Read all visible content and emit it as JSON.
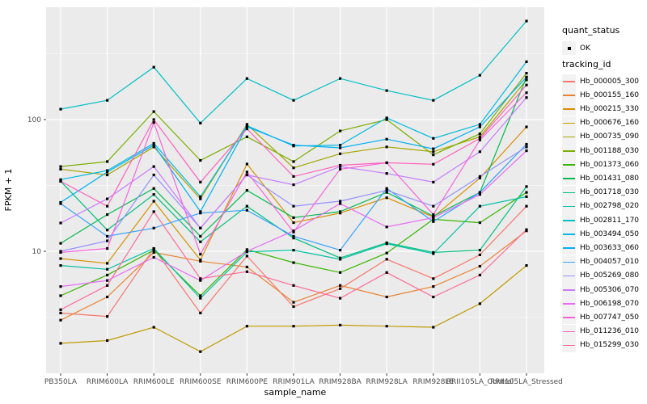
{
  "chart_data": {
    "type": "line",
    "title": "",
    "xlabel": "sample_name",
    "ylabel": "FPKM + 1",
    "y_scale": "log10",
    "y_ticks": [
      {
        "value": 100,
        "label": "100"
      },
      {
        "value": 10,
        "label": "10"
      }
    ],
    "y_minor_gridlines": [
      3.1623,
      31.623,
      316.23
    ],
    "ylim": [
      1.2,
      730
    ],
    "grid": "on",
    "legend_position": "right",
    "x_categories": [
      "PB350LA",
      "RRIM600LA",
      "RRIM600LE",
      "RRIM600SE",
      "RRIM600PE",
      "RRIM901LA",
      "RRIM928BA",
      "RRIM928LA",
      "RRIM928LE",
      "RRII105LA_Control",
      "RRII105LA_Stressed"
    ],
    "series": [
      {
        "name": "Hb_000005_300",
        "color": "#F8766D",
        "values": [
          3.4,
          3.2,
          10.5,
          3.4,
          9.2,
          3.8,
          5.2,
          8.7,
          6.2,
          9.4,
          22
        ]
      },
      {
        "name": "Hb_000155_160",
        "color": "#EA8331",
        "values": [
          3.0,
          4.5,
          9.8,
          8.4,
          7.6,
          4.1,
          5.5,
          4.5,
          5.4,
          7.7,
          14.3
        ]
      },
      {
        "name": "Hb_000215_330",
        "color": "#D89000",
        "values": [
          8.8,
          8.1,
          24,
          8.6,
          46,
          16.5,
          19.5,
          25.5,
          18.2,
          36,
          88
        ]
      },
      {
        "name": "Hb_000676_160",
        "color": "#C09B00",
        "values": [
          2.0,
          2.1,
          2.65,
          1.73,
          2.7,
          2.7,
          2.75,
          2.7,
          2.65,
          4.0,
          7.8
        ]
      },
      {
        "name": "Hb_000735_090",
        "color": "#A3A500",
        "values": [
          42,
          38,
          62,
          25,
          92,
          43,
          55,
          62,
          57,
          74,
          200
        ]
      },
      {
        "name": "Hb_001188_030",
        "color": "#7CAE00",
        "values": [
          44,
          48,
          115,
          49,
          74,
          48,
          82,
          100,
          54,
          78,
          225
        ]
      },
      {
        "name": "Hb_001373_060",
        "color": "#39B600",
        "values": [
          4.6,
          6.6,
          10.2,
          4.6,
          10.3,
          8.2,
          6.9,
          9.7,
          17.5,
          16.5,
          28
        ]
      },
      {
        "name": "Hb_001431_080",
        "color": "#00BB4E",
        "values": [
          11.5,
          19,
          30,
          13,
          29,
          18,
          20,
          28,
          18.5,
          28,
          210
        ]
      },
      {
        "name": "Hb_001718_030",
        "color": "#00BF7D",
        "values": [
          34,
          14.5,
          27,
          11.8,
          22,
          12.6,
          8.9,
          11.6,
          9.8,
          10.2,
          31
        ]
      },
      {
        "name": "Hb_002798_020",
        "color": "#00C1A3",
        "values": [
          7.8,
          7.3,
          10.5,
          4.4,
          9.9,
          10.2,
          8.7,
          11.4,
          9.6,
          22,
          26
        ]
      },
      {
        "name": "Hb_002811_170",
        "color": "#00BFC4",
        "values": [
          120,
          140,
          250,
          94,
          205,
          140,
          205,
          166,
          140,
          217,
          560
        ]
      },
      {
        "name": "Hb_003494_050",
        "color": "#00BAE0",
        "values": [
          35,
          41,
          66,
          26,
          90,
          63,
          64,
          103,
          72,
          92,
          275
        ]
      },
      {
        "name": "Hb_003633_060",
        "color": "#00B0F6",
        "values": [
          23.5,
          40,
          64,
          20,
          88,
          64,
          61,
          71,
          60,
          88,
          210
        ]
      },
      {
        "name": "Hb_004057_010",
        "color": "#35A2FF",
        "values": [
          23,
          13,
          15,
          19.5,
          20.5,
          13,
          10.2,
          30,
          16.8,
          28,
          65
        ]
      },
      {
        "name": "Hb_005269_080",
        "color": "#9590FF",
        "values": [
          10,
          12,
          38,
          15,
          38,
          22,
          24,
          29,
          22,
          37,
          62
        ]
      },
      {
        "name": "Hb_005306_070",
        "color": "#C77CFF",
        "values": [
          16.4,
          25,
          44,
          15,
          38,
          32,
          44,
          39,
          33.5,
          57,
          147
        ]
      },
      {
        "name": "Hb_006198_070",
        "color": "#E76BF3",
        "values": [
          5.4,
          6.0,
          9.0,
          6.0,
          10.0,
          14.3,
          23,
          15.3,
          18,
          27,
          58
        ]
      },
      {
        "name": "Hb_007747_050",
        "color": "#FA62DB",
        "values": [
          9.8,
          10.5,
          95,
          9.5,
          40,
          14,
          42,
          47,
          19,
          70,
          160
        ]
      },
      {
        "name": "Hb_011236_010",
        "color": "#FF62BC",
        "values": [
          34,
          22,
          100,
          33.5,
          85,
          37,
          45,
          47,
          45.8,
          72,
          183
        ]
      },
      {
        "name": "Hb_015299_030",
        "color": "#FF6A98",
        "values": [
          3.6,
          5.5,
          20,
          6.2,
          7.0,
          5.5,
          4.4,
          6.9,
          4.5,
          6.6,
          14.6
        ]
      }
    ]
  },
  "legend": {
    "quant_status_title": "quant_status",
    "ok_label": "OK",
    "tracking_title": "tracking_id"
  },
  "colors": {
    "panel_bg": "#EBEBEB",
    "grid": "#FFFFFF",
    "point": "#000000",
    "tick_mark": "#333333",
    "axis_text": "#4D4D4D",
    "legend_key_bg": "#F2F2F2"
  }
}
